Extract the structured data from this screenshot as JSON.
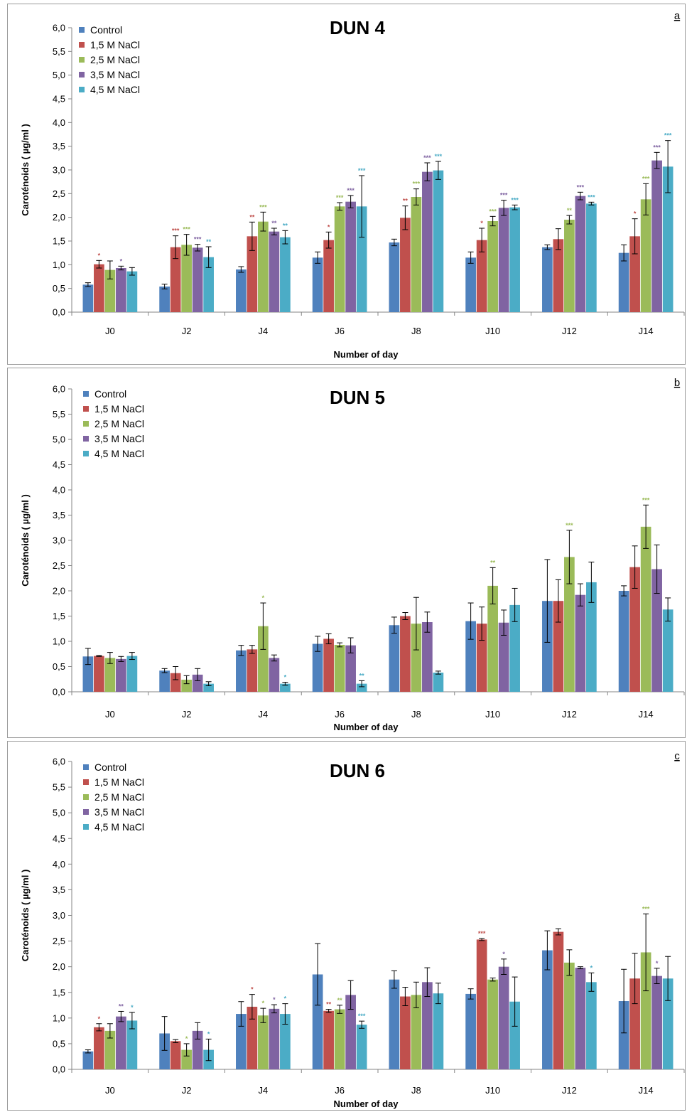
{
  "colors": {
    "control": "#4f81bd",
    "nacl_1_5": "#c0504d",
    "nacl_2_5": "#9bbb59",
    "nacl_3_5": "#8064a2",
    "nacl_4_5": "#4bacc6"
  },
  "chart_data": [
    {
      "type": "bar",
      "title": "DUN 4",
      "panel_label": "a",
      "xlabel": "Number of day",
      "ylabel": "Caroténoids ( µg/ml )",
      "ylim": [
        0,
        6
      ],
      "ytick_labels": [
        "0,0",
        "0,5",
        "1,0",
        "1,5",
        "2,0",
        "2,5",
        "3,0",
        "3,5",
        "4,0",
        "4,5",
        "5,0",
        "5,5",
        "6,0"
      ],
      "categories": [
        "J0",
        "J2",
        "J4",
        "J6",
        "J8",
        "J10",
        "J12",
        "J14"
      ],
      "legend_position": "top-left",
      "series": [
        {
          "name": "Control",
          "values": [
            0.58,
            0.54,
            0.9,
            1.15,
            1.47,
            1.15,
            1.37,
            1.25
          ],
          "errors": [
            0.04,
            0.05,
            0.06,
            0.12,
            0.07,
            0.12,
            0.05,
            0.17
          ],
          "marks": [
            "",
            "",
            "",
            "",
            "",
            "",
            "",
            ""
          ]
        },
        {
          "name": "1,5 M NaCl",
          "values": [
            1.01,
            1.37,
            1.6,
            1.52,
            1.99,
            1.52,
            1.54,
            1.6
          ],
          "errors": [
            0.08,
            0.24,
            0.3,
            0.17,
            0.25,
            0.25,
            0.22,
            0.37
          ],
          "marks": [
            "*",
            "***",
            "**",
            "*",
            "**",
            "*",
            "",
            "*"
          ]
        },
        {
          "name": "2,5 M NaCl",
          "values": [
            0.89,
            1.42,
            1.91,
            2.23,
            2.43,
            1.92,
            1.95,
            2.38
          ],
          "errors": [
            0.19,
            0.22,
            0.2,
            0.08,
            0.17,
            0.1,
            0.09,
            0.33
          ],
          "marks": [
            "",
            "***",
            "***",
            "***",
            "***",
            "***",
            "**",
            "***"
          ]
        },
        {
          "name": "3,5 M NaCl",
          "values": [
            0.93,
            1.36,
            1.7,
            2.33,
            2.96,
            2.2,
            2.45,
            3.2
          ],
          "errors": [
            0.04,
            0.07,
            0.07,
            0.13,
            0.19,
            0.16,
            0.08,
            0.17
          ],
          "marks": [
            "*",
            "***",
            "**",
            "***",
            "***",
            "***",
            "***",
            "***"
          ]
        },
        {
          "name": "4,5 M NaCl",
          "values": [
            0.86,
            1.16,
            1.58,
            2.23,
            2.99,
            2.21,
            2.29,
            3.07
          ],
          "errors": [
            0.08,
            0.22,
            0.14,
            0.65,
            0.19,
            0.05,
            0.03,
            0.55
          ],
          "marks": [
            "",
            "**",
            "**",
            "***",
            "***",
            "***",
            "***",
            "***"
          ]
        }
      ]
    },
    {
      "type": "bar",
      "title": "DUN 5",
      "panel_label": "b",
      "xlabel": "Number of day",
      "ylabel": "Caroténoids ( µg/ml )",
      "ylim": [
        0,
        6
      ],
      "ytick_labels": [
        "0,0",
        "0,5",
        "1,0",
        "1,5",
        "2,0",
        "2,5",
        "3,0",
        "3,5",
        "4,0",
        "4,5",
        "5,0",
        "5,5",
        "6,0"
      ],
      "categories": [
        "J0",
        "J2",
        "J4",
        "J6",
        "J8",
        "J10",
        "J12",
        "J14"
      ],
      "legend_position": "top-left",
      "series": [
        {
          "name": "Control",
          "values": [
            0.7,
            0.42,
            0.82,
            0.95,
            1.32,
            1.4,
            1.8,
            2.0
          ],
          "errors": [
            0.16,
            0.04,
            0.1,
            0.15,
            0.16,
            0.36,
            0.82,
            0.1
          ],
          "marks": [
            "",
            "",
            "",
            "",
            "",
            "",
            "",
            ""
          ]
        },
        {
          "name": "1,5 M NaCl",
          "values": [
            0.71,
            0.37,
            0.84,
            1.05,
            1.5,
            1.35,
            1.8,
            2.47
          ],
          "errors": [
            0.01,
            0.13,
            0.08,
            0.1,
            0.07,
            0.33,
            0.42,
            0.42
          ],
          "marks": [
            "",
            "",
            "",
            "",
            "",
            "",
            "",
            ""
          ]
        },
        {
          "name": "2,5 M NaCl",
          "values": [
            0.67,
            0.24,
            1.3,
            0.93,
            1.35,
            2.1,
            2.67,
            3.27
          ],
          "errors": [
            0.11,
            0.08,
            0.46,
            0.04,
            0.52,
            0.36,
            0.53,
            0.43
          ],
          "marks": [
            "",
            "",
            "*",
            "",
            "",
            "**",
            "***",
            "***"
          ]
        },
        {
          "name": "3,5 M NaCl",
          "values": [
            0.65,
            0.34,
            0.67,
            0.92,
            1.38,
            1.37,
            1.92,
            2.43
          ],
          "errors": [
            0.05,
            0.12,
            0.06,
            0.15,
            0.2,
            0.25,
            0.22,
            0.48
          ],
          "marks": [
            "",
            "",
            "",
            "",
            "",
            "",
            "",
            ""
          ]
        },
        {
          "name": "4,5 M NaCl",
          "values": [
            0.71,
            0.16,
            0.16,
            0.16,
            0.38,
            1.72,
            2.17,
            1.63
          ],
          "errors": [
            0.07,
            0.04,
            0.03,
            0.06,
            0.03,
            0.33,
            0.4,
            0.23
          ],
          "marks": [
            "",
            "",
            "*",
            "**",
            "",
            "",
            "",
            ""
          ]
        }
      ]
    },
    {
      "type": "bar",
      "title": "DUN 6",
      "panel_label": "c",
      "xlabel": "Number of day",
      "ylabel": "Caroténoids ( µg/ml )",
      "ylim": [
        0,
        6
      ],
      "ytick_labels": [
        "0,0",
        "0,5",
        "1,0",
        "1,5",
        "2,0",
        "2,5",
        "3,0",
        "3,5",
        "4,0",
        "4,5",
        "5,0",
        "5,5",
        "6,0"
      ],
      "categories": [
        "J0",
        "J2",
        "J4",
        "J6",
        "J8",
        "J10",
        "J12",
        "J14"
      ],
      "legend_position": "top-left",
      "series": [
        {
          "name": "Control",
          "values": [
            0.35,
            0.7,
            1.08,
            1.85,
            1.75,
            1.47,
            2.32,
            1.33
          ],
          "errors": [
            0.03,
            0.33,
            0.24,
            0.6,
            0.17,
            0.1,
            0.38,
            0.62
          ],
          "marks": [
            "",
            "",
            "",
            "",
            "",
            "",
            "",
            ""
          ]
        },
        {
          "name": "1,5 M NaCl",
          "values": [
            0.82,
            0.55,
            1.22,
            1.14,
            1.42,
            2.53,
            2.68,
            1.77
          ],
          "errors": [
            0.07,
            0.03,
            0.24,
            0.03,
            0.18,
            0.02,
            0.06,
            0.49
          ],
          "marks": [
            "*",
            "",
            "*",
            "**",
            "",
            "***",
            "",
            ""
          ]
        },
        {
          "name": "2,5 M NaCl",
          "values": [
            0.75,
            0.38,
            1.05,
            1.17,
            1.45,
            1.75,
            2.08,
            2.28
          ],
          "errors": [
            0.14,
            0.12,
            0.14,
            0.08,
            0.25,
            0.03,
            0.25,
            0.75
          ],
          "marks": [
            "",
            "*",
            "*",
            "**",
            "",
            "",
            "",
            "***"
          ]
        },
        {
          "name": "3,5 M NaCl",
          "values": [
            1.03,
            0.75,
            1.18,
            1.45,
            1.7,
            2.0,
            1.98,
            1.82
          ],
          "errors": [
            0.1,
            0.16,
            0.08,
            0.28,
            0.28,
            0.15,
            0.02,
            0.15
          ],
          "marks": [
            "**",
            "",
            "*",
            "",
            "",
            "*",
            "",
            "*"
          ]
        },
        {
          "name": "4,5 M NaCl",
          "values": [
            0.95,
            0.38,
            1.08,
            0.87,
            1.48,
            1.32,
            1.7,
            1.77
          ],
          "errors": [
            0.16,
            0.21,
            0.2,
            0.07,
            0.2,
            0.48,
            0.18,
            0.43
          ],
          "marks": [
            "*",
            "*",
            "*",
            "***",
            "",
            "",
            "*",
            ""
          ]
        }
      ]
    }
  ]
}
